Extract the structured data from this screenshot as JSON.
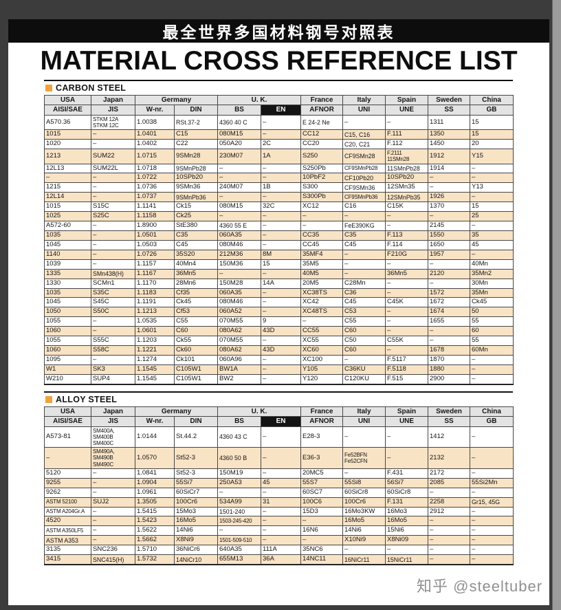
{
  "banner": {
    "title_cn": "最全世界多国材料钢号对照表"
  },
  "page_title": "MATERIAL CROSS REFERENCE LIST",
  "watermark": {
    "text": "知乎 @steeltuber"
  },
  "colors": {
    "accent_orange": "#F0A23C",
    "row_tan": "#F9E3C5",
    "header_gray": "#E3E3E3",
    "banner_black": "#0D0D0D",
    "inverted_header": "#141414"
  },
  "columns": {
    "groups": [
      {
        "label": "USA",
        "span": 1
      },
      {
        "label": "Japan",
        "span": 1
      },
      {
        "label": "Germany",
        "span": 2
      },
      {
        "label": "U. K.",
        "span": 2
      },
      {
        "label": "France",
        "span": 1
      },
      {
        "label": "Italy",
        "span": 1
      },
      {
        "label": "Spain",
        "span": 1
      },
      {
        "label": "Sweden",
        "span": 1
      },
      {
        "label": "China",
        "span": 1
      }
    ],
    "subheaders": [
      {
        "label": "AISI/SAE",
        "inverted": false
      },
      {
        "label": "JIS",
        "inverted": false
      },
      {
        "label": "W-nr.",
        "inverted": false
      },
      {
        "label": "DIN",
        "inverted": false
      },
      {
        "label": "BS",
        "inverted": false
      },
      {
        "label": "EN",
        "inverted": true
      },
      {
        "label": "AFNOR",
        "inverted": false
      },
      {
        "label": "UNI",
        "inverted": false
      },
      {
        "label": "UNE",
        "inverted": false
      },
      {
        "label": "SS",
        "inverted": false
      },
      {
        "label": "GB",
        "inverted": false
      }
    ]
  },
  "sections": [
    {
      "name": "CARBON STEEL",
      "rows": [
        [
          "A570.36",
          "STKM 12A\nSTKM 12C",
          "1.0038",
          "RSt.37-2",
          "4360 40 C",
          "–",
          "E 24-2 Ne",
          "–",
          "–",
          "1311",
          "15"
        ],
        [
          "1015",
          "–",
          "1.0401",
          "C15",
          "080M15",
          "–",
          "CC12",
          "C15, C16",
          "F.111",
          "1350",
          "15"
        ],
        [
          "1020",
          "–",
          "1.0402",
          "C22",
          "050A20",
          "2C",
          "CC20",
          "C20, C21",
          "F.112",
          "1450",
          "20"
        ],
        [
          "1213",
          "SUM22",
          "1.0715",
          "9SMn28",
          "230M07",
          "1A",
          "S250",
          "CF9SMn28",
          "F.2111\n11SMn28",
          "1912",
          "Y15"
        ],
        [
          "12L13",
          "SUM22L",
          "1.0718",
          "9SMnPb28",
          "–",
          "–",
          "S250Pb",
          "CF9SMnPb28",
          "11SMnPb28",
          "1914",
          "–"
        ],
        [
          "–",
          "–",
          "1.0722",
          "10SPb20",
          "–",
          "–",
          "10PbF2",
          "CF10Pb20",
          "10SPb20",
          "–",
          "–"
        ],
        [
          "1215",
          "–",
          "1.0736",
          "9SMn36",
          "240M07",
          "1B",
          "S300",
          "CF9SMn36",
          "12SMn35",
          "–",
          "Y13"
        ],
        [
          "12L14",
          "–",
          "1.0737",
          "9SMnPb36",
          "–",
          "–",
          "S300Pb",
          "CF9SMnPb36",
          "12SMnPb35",
          "1926",
          "–"
        ],
        [
          "1015",
          "S15C",
          "1.1141",
          "Ck15",
          "080M15",
          "32C",
          "XC12",
          "C16",
          "C15K",
          "1370",
          "15"
        ],
        [
          "1025",
          "S25C",
          "1.1158",
          "Ck25",
          "–",
          "–",
          "–",
          "–",
          "–",
          "–",
          "25"
        ],
        [
          "A572-60",
          "–",
          "1.8900",
          "StE380",
          "4360 55 E",
          "–",
          "–",
          "FeE390KG",
          "–",
          "2145",
          "–"
        ],
        [
          "1035",
          "–",
          "1.0501",
          "C35",
          "060A35",
          "–",
          "CC35",
          "C35",
          "F.113",
          "1550",
          "35"
        ],
        [
          "1045",
          "–",
          "1.0503",
          "C45",
          "080M46",
          "–",
          "CC45",
          "C45",
          "F.114",
          "1650",
          "45"
        ],
        [
          "1140",
          "–",
          "1.0726",
          "35S20",
          "212M36",
          "8M",
          "35MF4",
          "–",
          "F210G",
          "1957",
          "–"
        ],
        [
          "1039",
          "–",
          "1.1157",
          "40Mn4",
          "150M36",
          "15",
          "35M5",
          "–",
          "–",
          "–",
          "40Mn"
        ],
        [
          "1335",
          "SMn438(H)",
          "1.1167",
          "36Mn5",
          "–",
          "–",
          "40M5",
          "–",
          "36Mn5",
          "2120",
          "35Mn2"
        ],
        [
          "1330",
          "SCMn1",
          "1.1170",
          "28Mn6",
          "150M28",
          "14A",
          "20M5",
          "C28Mn",
          "–",
          "–",
          "30Mn"
        ],
        [
          "1035",
          "S35C",
          "1.1183",
          "Cf35",
          "060A35",
          "–",
          "XC38TS",
          "C36",
          "–",
          "1572",
          "35Mn"
        ],
        [
          "1045",
          "S45C",
          "1.1191",
          "Ck45",
          "080M46",
          "–",
          "XC42",
          "C45",
          "C45K",
          "1672",
          "Ck45"
        ],
        [
          "1050",
          "S50C",
          "1.1213",
          "Cf53",
          "060A52",
          "–",
          "XC48TS",
          "C53",
          "–",
          "1674",
          "50"
        ],
        [
          "1055",
          "–",
          "1.0535",
          "C55",
          "070M55",
          "9",
          "–",
          "C55",
          "–",
          "1655",
          "55"
        ],
        [
          "1060",
          "–",
          "1.0601",
          "C60",
          "080A62",
          "43D",
          "CC55",
          "C60",
          "–",
          "–",
          "60"
        ],
        [
          "1055",
          "S55C",
          "1.1203",
          "Ck55",
          "070M55",
          "–",
          "XC55",
          "C50",
          "C55K",
          "–",
          "55"
        ],
        [
          "1060",
          "S58C",
          "1.1221",
          "Ck60",
          "080A62",
          "43D",
          "XC60",
          "C60",
          "–",
          "1678",
          "60Mn"
        ],
        [
          "1095",
          "–",
          "1.1274",
          "Ck101",
          "060A96",
          "–",
          "XC100",
          "–",
          "F.5117",
          "1870",
          "–"
        ],
        [
          "W1",
          "SK3",
          "1.1545",
          "C105W1",
          "BW1A",
          "–",
          "Y105",
          "C36KU",
          "F.5118",
          "1880",
          "–"
        ],
        [
          "W210",
          "SUP4",
          "1.1545",
          "C105W1",
          "BW2",
          "–",
          "Y120",
          "C120KU",
          "F.515",
          "2900",
          "–"
        ]
      ]
    },
    {
      "name": "ALLOY STEEL",
      "rows": [
        [
          "A573-81",
          "SM400A, SM400B\nSM400C",
          "1.0144",
          "St.44.2",
          "4360 43 C",
          "–",
          "E28-3",
          "–",
          "–",
          "1412",
          "–"
        ],
        [
          "–",
          "SM490A, SM490B\nSM490C",
          "1.0570",
          "St52-3",
          "4360 50 B",
          "–",
          "E36-3",
          "Fe52BFN\nFe52CFN",
          "–",
          "2132",
          "–"
        ],
        [
          "5120",
          "–",
          "1.0841",
          "St52-3",
          "150M19",
          "–",
          "20MC5",
          "–",
          "F.431",
          "2172",
          "–"
        ],
        [
          "9255",
          "–",
          "1.0904",
          "55Si7",
          "250A53",
          "45",
          "55S7",
          "55Si8",
          "56Si7",
          "2085",
          "55Si2Mn"
        ],
        [
          "9262",
          "–",
          "1.0961",
          "60SiCr7",
          "–",
          "–",
          "60SC7",
          "60SiCr8",
          "60SiCr8",
          "–",
          "–"
        ],
        [
          "ASTM 52100",
          "SUJ2",
          "1.3505",
          "100Cr6",
          "534A99",
          "31",
          "100C6",
          "100Cr6",
          "F.131",
          "2258",
          "Gr15, 45G"
        ],
        [
          "ASTM A204Gr.A",
          "–",
          "1.5415",
          "15Mo3",
          "1501-240",
          "–",
          "15D3",
          "16Mo3KW",
          "16Mo3",
          "2912",
          "–"
        ],
        [
          "4520",
          "–",
          "1.5423",
          "16Mo5",
          "1503-245-420",
          "–",
          "–",
          "16Mo5",
          "16Mo5",
          "–",
          "–"
        ],
        [
          "ASTM A350LF5",
          "–",
          "1.5622",
          "14Ni6",
          "–",
          "–",
          "16N6",
          "14Ni6",
          "15Ni6",
          "–",
          "–"
        ],
        [
          "ASTM A353",
          "–",
          "1.5662",
          "X8Ni9",
          "1501-509-510",
          "–",
          "–",
          "X10Ni9",
          "X8Ni09",
          "–",
          "–"
        ],
        [
          "3135",
          "SNC236",
          "1.5710",
          "36NiCr6",
          "640A35",
          "111A",
          "35NC6",
          "–",
          "–",
          "–",
          "–"
        ],
        [
          "3415",
          "SNC415(H)",
          "1.5732",
          "14NiCr10",
          "655M13",
          "36A",
          "14NC11",
          "16NiCr11",
          "15NiCr11",
          "–",
          "–"
        ]
      ]
    }
  ]
}
